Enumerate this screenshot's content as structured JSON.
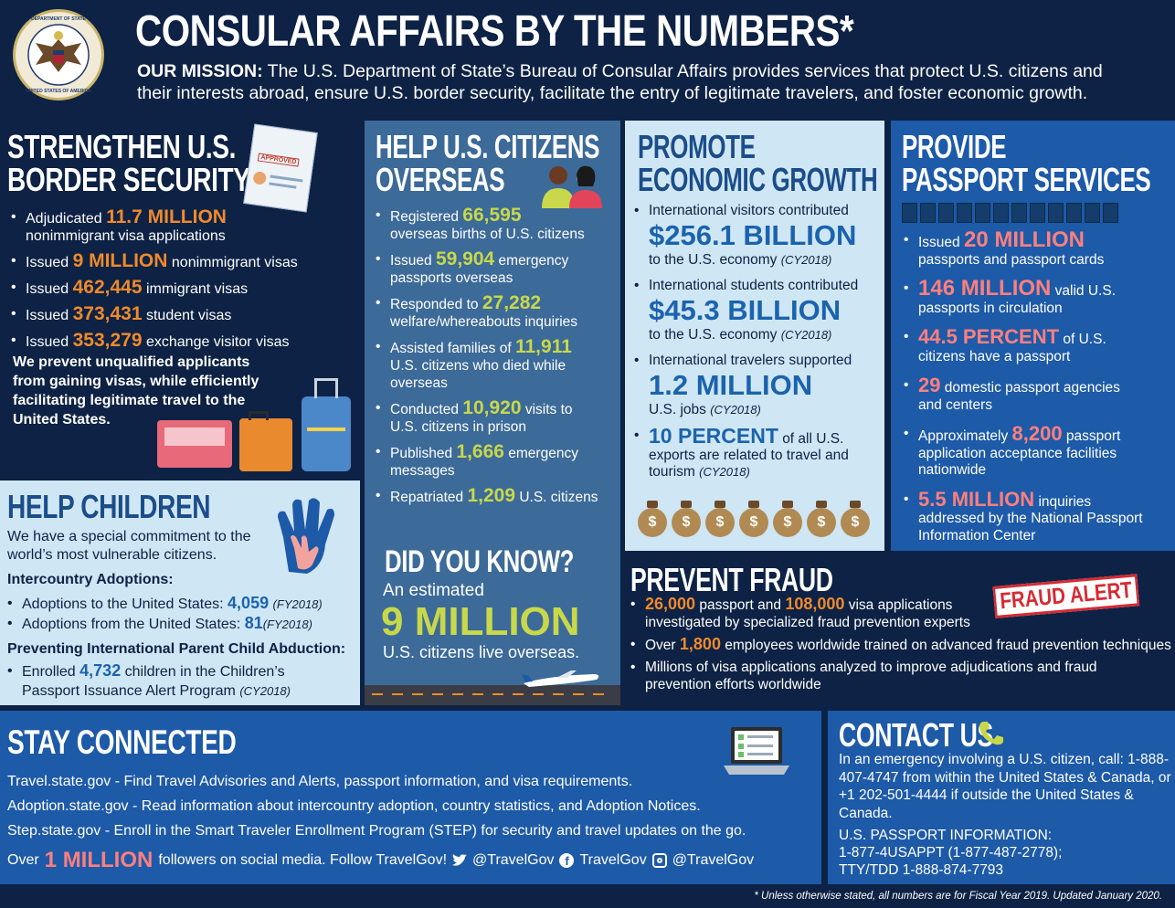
{
  "header": {
    "title": "CONSULAR AFFAIRS BY THE NUMBERS*",
    "mission_label": "OUR MISSION:",
    "mission_line1": "The U.S. Department of State’s Bureau of Consular Affairs provides services that protect U.S. citizens and",
    "mission_line2": "their interests abroad, ensure U.S. border security, facilitate the entry of legitimate travelers, and foster economic growth.",
    "seal_top_text": "DEPARTMENT OF STATE",
    "seal_bottom_text": "UNITED STATES OF AMERICA"
  },
  "border": {
    "title1": "STRENGTHEN U.S.",
    "title2": "BORDER SECURITY",
    "stamp": "APPROVED",
    "items": [
      {
        "pre": "Adjudicated",
        "num": "11.7 MILLION",
        "post": "nonimmigrant visa applications"
      },
      {
        "pre": "Issued",
        "num": "9 MILLION",
        "post": "nonimmigrant visas"
      },
      {
        "pre": "Issued",
        "num": "462,445",
        "post": "immigrant visas"
      },
      {
        "pre": "Issued",
        "num": "373,431",
        "post": "student visas"
      },
      {
        "pre": "Issued",
        "num": "353,279",
        "post": "exchange visitor visas"
      }
    ],
    "para": "We prevent unqualified applicants from gaining visas, while efficiently facilitating legitimate travel to the United States."
  },
  "children": {
    "title": "HELP CHILDREN",
    "intro": "We have a special commitment to the world’s most vulnerable citizens.",
    "adoptions_heading": "Intercountry Adoptions:",
    "adoptions": [
      {
        "pre": "Adoptions to the United States:",
        "num": "4,059",
        "note": "(FY2018)"
      },
      {
        "pre": "Adoptions from the United States:",
        "num": "81",
        "note": "(FY2018)"
      }
    ],
    "abduction_heading": "Preventing International Parent Child Abduction:",
    "abduction_pre": "Enrolled",
    "abduction_num": "4,732",
    "abduction_post": "children in the Children’s",
    "abduction_line2": "Passport Issuance Alert Program",
    "abduction_note": "(CY2018)"
  },
  "citizens": {
    "title1": "HELP U.S. CITIZENS",
    "title2": "OVERSEAS",
    "items": [
      {
        "pre": "Registered",
        "num": "66,595",
        "post": "",
        "line2": "overseas births of U.S. citizens"
      },
      {
        "pre": "Issued",
        "num": "59,904",
        "post": "emergency",
        "line2": "passports overseas"
      },
      {
        "pre": "Responded to",
        "num": "27,282",
        "post": "",
        "line2": "welfare/whereabouts inquiries"
      },
      {
        "pre": "Assisted families of",
        "num": "11,911",
        "post": "",
        "line2": "U.S. citizens who died while overseas"
      },
      {
        "pre": "Conducted",
        "num": "10,920",
        "post": "visits to",
        "line2": "U.S. citizens in prison"
      },
      {
        "pre": "Published",
        "num": "1,666",
        "post": "emergency",
        "line2": "messages"
      },
      {
        "pre": "Repatriated",
        "num": "1,209",
        "post": "U.S. citizens",
        "line2": ""
      }
    ],
    "dyk_title": "DID YOU KNOW?",
    "dyk_pre": "An estimated",
    "dyk_num": "9 MILLION",
    "dyk_post": "U.S. citizens live overseas."
  },
  "economy": {
    "title1": "PROMOTE",
    "title2": "ECONOMIC GROWTH",
    "items": [
      {
        "lead": "International visitors contributed",
        "num": "$256.1 BILLION",
        "post": "to the U.S. economy",
        "note": "(CY2018)"
      },
      {
        "lead": "International students contributed",
        "num": "$45.3 BILLION",
        "post": "to the U.S. economy",
        "note": "(CY2018)"
      },
      {
        "lead": "International travelers supported",
        "num": "1.2 MILLION",
        "post": "U.S. jobs",
        "note": "(CY2018)"
      }
    ],
    "pct_num": "10 PERCENT",
    "pct_post": "of all U.S.",
    "pct_line2": "exports are related to travel and",
    "pct_line3": "tourism",
    "pct_note": "(CY2018)",
    "bag_symbol": "$"
  },
  "passport": {
    "title1": "PROVIDE",
    "title2": "PASSPORT SERVICES",
    "items": [
      {
        "pre": "Issued",
        "num": "20 MILLION",
        "post": "",
        "line2": "passports and passport cards"
      },
      {
        "pre": "",
        "num": "146 MILLION",
        "post": "valid U.S.",
        "line2": "passports  in circulation"
      },
      {
        "pre": "",
        "num": "44.5 PERCENT",
        "post": "of U.S.",
        "line2": "citizens have a passport"
      },
      {
        "pre": "",
        "num": "29",
        "post": "domestic passport agencies",
        "line2": "and centers"
      },
      {
        "pre": "Approximately",
        "num": "8,200",
        "post": "passport",
        "line2": "application acceptance facilities",
        "line3": "nationwide"
      },
      {
        "pre": "",
        "num": "5.5 MILLION",
        "post": "inquiries",
        "line2": "addressed by the National Passport",
        "line3": "Information Center"
      }
    ]
  },
  "fraud": {
    "title": "PREVENT FRAUD",
    "stamp": "FRAUD ALERT",
    "item1_num1": "26,000",
    "item1_mid": "passport and",
    "item1_num2": "108,000",
    "item1_post": "visa applications",
    "item1_line2": "investigated by specialized fraud prevention experts",
    "item2_pre": "Over",
    "item2_num": "1,800",
    "item2_post": "employees worldwide trained on advanced fraud prevention techniques",
    "item3_line1": "Millions of visa applications analyzed to improve adjudications and fraud",
    "item3_line2": "prevention efforts worldwide"
  },
  "connected": {
    "title": "STAY CONNECTED",
    "links": [
      "Travel.state.gov - Find Travel Advisories and Alerts, passport information, and visa requirements.",
      "Adoption.state.gov - Read information about intercountry adoption, country statistics, and Adoption Notices.",
      "Step.state.gov - Enroll in the Smart Traveler Enrollment Program (STEP) for security and travel updates on the go."
    ],
    "over": "Over",
    "num": "1 MILLION",
    "follow": "followers on social media. Follow TravelGov!",
    "twitter": "@TravelGov",
    "facebook": "TravelGov",
    "instagram": "@TravelGov"
  },
  "contact": {
    "title": "CONTACT US",
    "emergency": "In an emergency involving a U.S. citizen, call: 1-888-407-4747 from within the United States & Canada, or +1 202-501-4444 if outside the United States & Canada.",
    "passport_heading": "U.S. PASSPORT INFORMATION:",
    "passport_line1": "1-877-4USAPPT (1-877-487-2778);",
    "passport_line2": "TTY/TDD 1-888-874-7793"
  },
  "footer": {
    "note": "* Unless otherwise stated, all numbers are for Fiscal Year 2019. Updated January 2020."
  },
  "colors": {
    "navy": "#0d2244",
    "orange": "#f08a2c",
    "lime": "#c8d84a",
    "lightblue": "#cfe6f5",
    "slateblue": "#3c6a99",
    "royal": "#1d5aa8",
    "pink": "#ff7f7f"
  }
}
